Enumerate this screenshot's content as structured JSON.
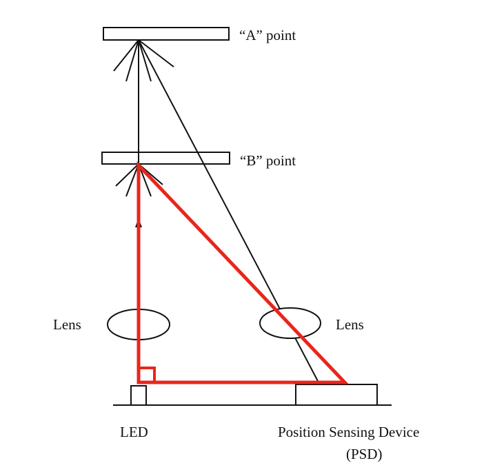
{
  "labels": {
    "point_a": "“A” point",
    "point_b": "“B” point",
    "lens_left": "Lens",
    "lens_right": "Lens",
    "led": "LED",
    "psd_line1": "Position Sensing Device",
    "psd_line2": "(PSD)"
  },
  "colors": {
    "ink": "#111111",
    "highlight": "#e8261c"
  }
}
